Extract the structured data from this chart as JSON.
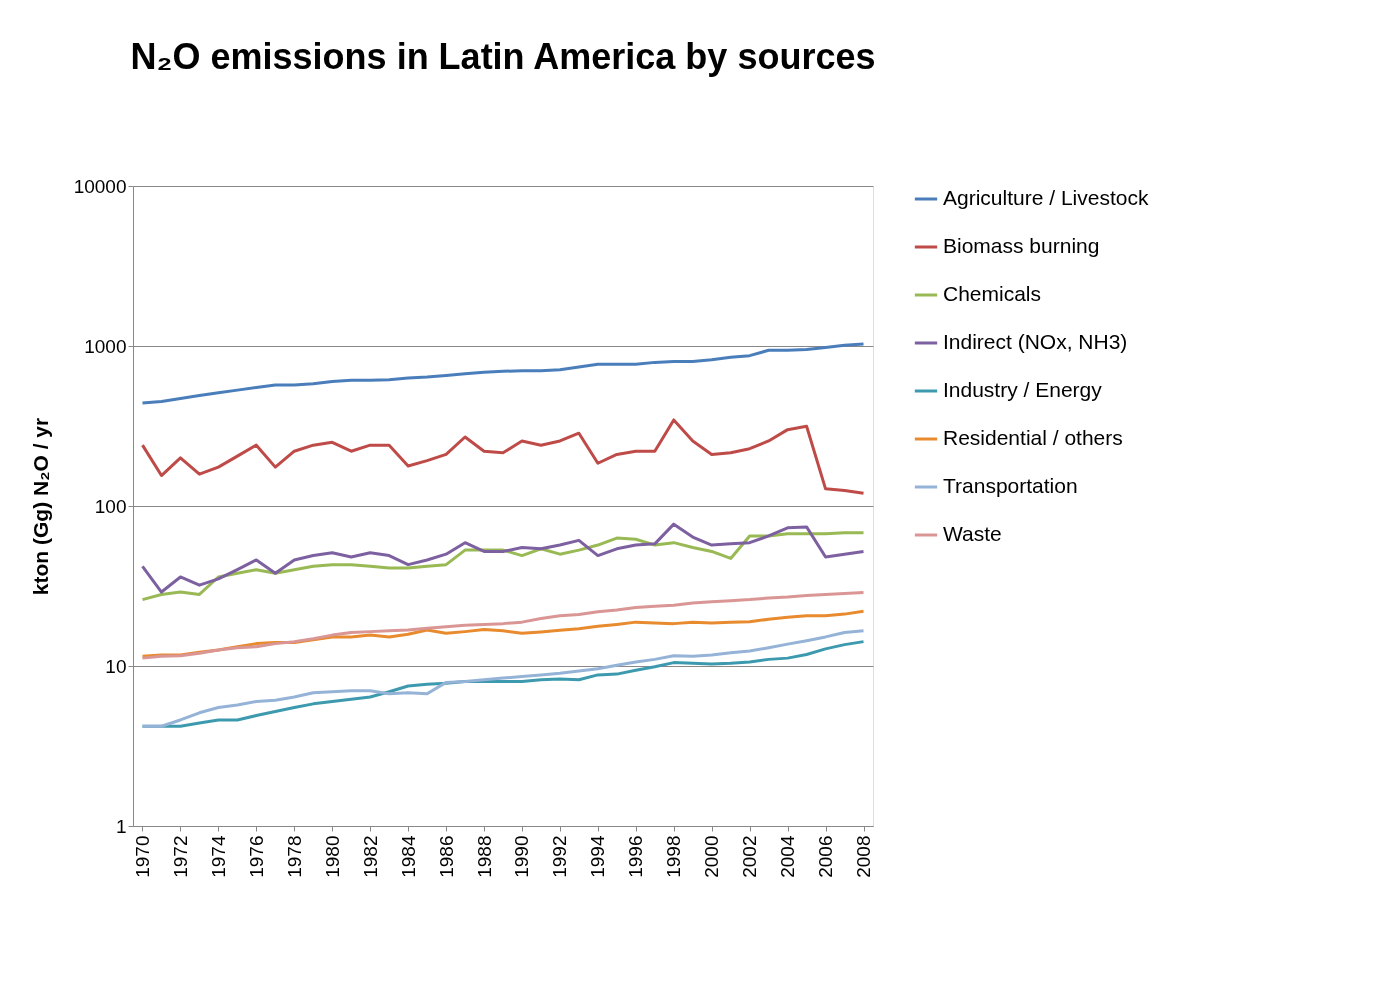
{
  "chart_data": {
    "type": "line",
    "title": "N₂O emissions in Latin America by sources",
    "ylabel": "kton (Gg) N₂O / yr",
    "x": [
      1970,
      1971,
      1972,
      1973,
      1974,
      1975,
      1976,
      1977,
      1978,
      1979,
      1980,
      1981,
      1982,
      1983,
      1984,
      1985,
      1986,
      1987,
      1988,
      1989,
      1990,
      1991,
      1992,
      1993,
      1994,
      1995,
      1996,
      1997,
      1998,
      1999,
      2000,
      2001,
      2002,
      2003,
      2004,
      2005,
      2006,
      2007,
      2008
    ],
    "xlim": [
      1969.5,
      2008.5
    ],
    "xticks": [
      1970,
      1972,
      1974,
      1976,
      1978,
      1980,
      1982,
      1984,
      1986,
      1988,
      1990,
      1992,
      1994,
      1996,
      1998,
      2000,
      2002,
      2004,
      2006,
      2008
    ],
    "ylim": [
      1,
      10000
    ],
    "yticks": [
      1,
      10,
      100,
      1000,
      10000
    ],
    "log": "y",
    "grid": "y",
    "legend": "right",
    "marker": "none",
    "line_style": "solid",
    "series": [
      {
        "name": "Agriculture / Livestock",
        "color": "#4a7ebb",
        "values": [
          440,
          450,
          470,
          490,
          510,
          530,
          550,
          570,
          570,
          580,
          600,
          610,
          610,
          615,
          630,
          640,
          655,
          670,
          685,
          695,
          700,
          700,
          710,
          740,
          770,
          770,
          770,
          790,
          800,
          800,
          820,
          850,
          870,
          940,
          940,
          950,
          980,
          1010,
          1030
        ]
      },
      {
        "name": "Biomass burning",
        "color": "#be4b48",
        "values": [
          240,
          155,
          200,
          158,
          175,
          205,
          240,
          175,
          220,
          240,
          250,
          220,
          240,
          240,
          178,
          192,
          210,
          270,
          220,
          215,
          255,
          240,
          255,
          285,
          185,
          210,
          220,
          220,
          345,
          255,
          210,
          215,
          228,
          255,
          300,
          315,
          128,
          125,
          120
        ]
      },
      {
        "name": "Chemicals",
        "color": "#98b954",
        "values": [
          26,
          28,
          29,
          28,
          36,
          38,
          40,
          38,
          40,
          42,
          43,
          43,
          42,
          41,
          41,
          42,
          43,
          53,
          53,
          53,
          49,
          54,
          50,
          53,
          57,
          63,
          62,
          57,
          59,
          55,
          52,
          47,
          65,
          65,
          67,
          67,
          67,
          68,
          68
        ]
      },
      {
        "name": "Indirect (NOx, NH3)",
        "color": "#7d60a0",
        "values": [
          42,
          29,
          36,
          32,
          35,
          40,
          46,
          38,
          46,
          49,
          51,
          48,
          51,
          49,
          43,
          46,
          50,
          59,
          52,
          52,
          55,
          54,
          57,
          61,
          49,
          54,
          57,
          58,
          77,
          64,
          57,
          58,
          59,
          65,
          73,
          74,
          48,
          50,
          52
        ]
      },
      {
        "name": "Industry / Energy",
        "color": "#3d9aae",
        "values": [
          4.2,
          4.2,
          4.2,
          4.4,
          4.6,
          4.6,
          4.9,
          5.2,
          5.5,
          5.8,
          6.0,
          6.2,
          6.4,
          6.9,
          7.5,
          7.7,
          7.8,
          8.0,
          8.0,
          8.0,
          8.0,
          8.2,
          8.3,
          8.2,
          8.8,
          8.9,
          9.4,
          9.9,
          10.5,
          10.4,
          10.3,
          10.4,
          10.6,
          11.0,
          11.2,
          11.8,
          12.8,
          13.6,
          14.2
        ]
      },
      {
        "name": "Residential / others",
        "color": "#e88a2e",
        "values": [
          11.5,
          11.7,
          11.7,
          12.2,
          12.6,
          13.2,
          13.8,
          14.0,
          14.0,
          14.6,
          15.2,
          15.2,
          15.6,
          15.2,
          15.8,
          16.8,
          16.0,
          16.4,
          16.9,
          16.6,
          16.0,
          16.3,
          16.7,
          17.1,
          17.7,
          18.2,
          18.8,
          18.6,
          18.4,
          18.8,
          18.6,
          18.8,
          18.9,
          19.6,
          20.2,
          20.6,
          20.6,
          21.1,
          22.0
        ]
      },
      {
        "name": "Transportation",
        "color": "#95b3d7",
        "values": [
          4.2,
          4.2,
          4.6,
          5.1,
          5.5,
          5.7,
          6.0,
          6.1,
          6.4,
          6.8,
          6.9,
          7.0,
          7.0,
          6.7,
          6.8,
          6.7,
          7.9,
          8.0,
          8.2,
          8.4,
          8.6,
          8.8,
          9.0,
          9.3,
          9.6,
          10.1,
          10.6,
          11.0,
          11.6,
          11.5,
          11.7,
          12.1,
          12.4,
          13.0,
          13.7,
          14.4,
          15.2,
          16.2,
          16.6
        ]
      },
      {
        "name": "Waste",
        "color": "#d99694",
        "values": [
          11.2,
          11.5,
          11.6,
          12.0,
          12.6,
          13.0,
          13.2,
          13.8,
          14.2,
          14.8,
          15.6,
          16.2,
          16.4,
          16.6,
          16.8,
          17.2,
          17.6,
          18.0,
          18.2,
          18.4,
          18.8,
          19.8,
          20.6,
          21.0,
          21.8,
          22.4,
          23.2,
          23.6,
          24.0,
          24.8,
          25.2,
          25.6,
          26.0,
          26.6,
          27.0,
          27.6,
          28.0,
          28.4,
          28.8
        ]
      }
    ]
  }
}
